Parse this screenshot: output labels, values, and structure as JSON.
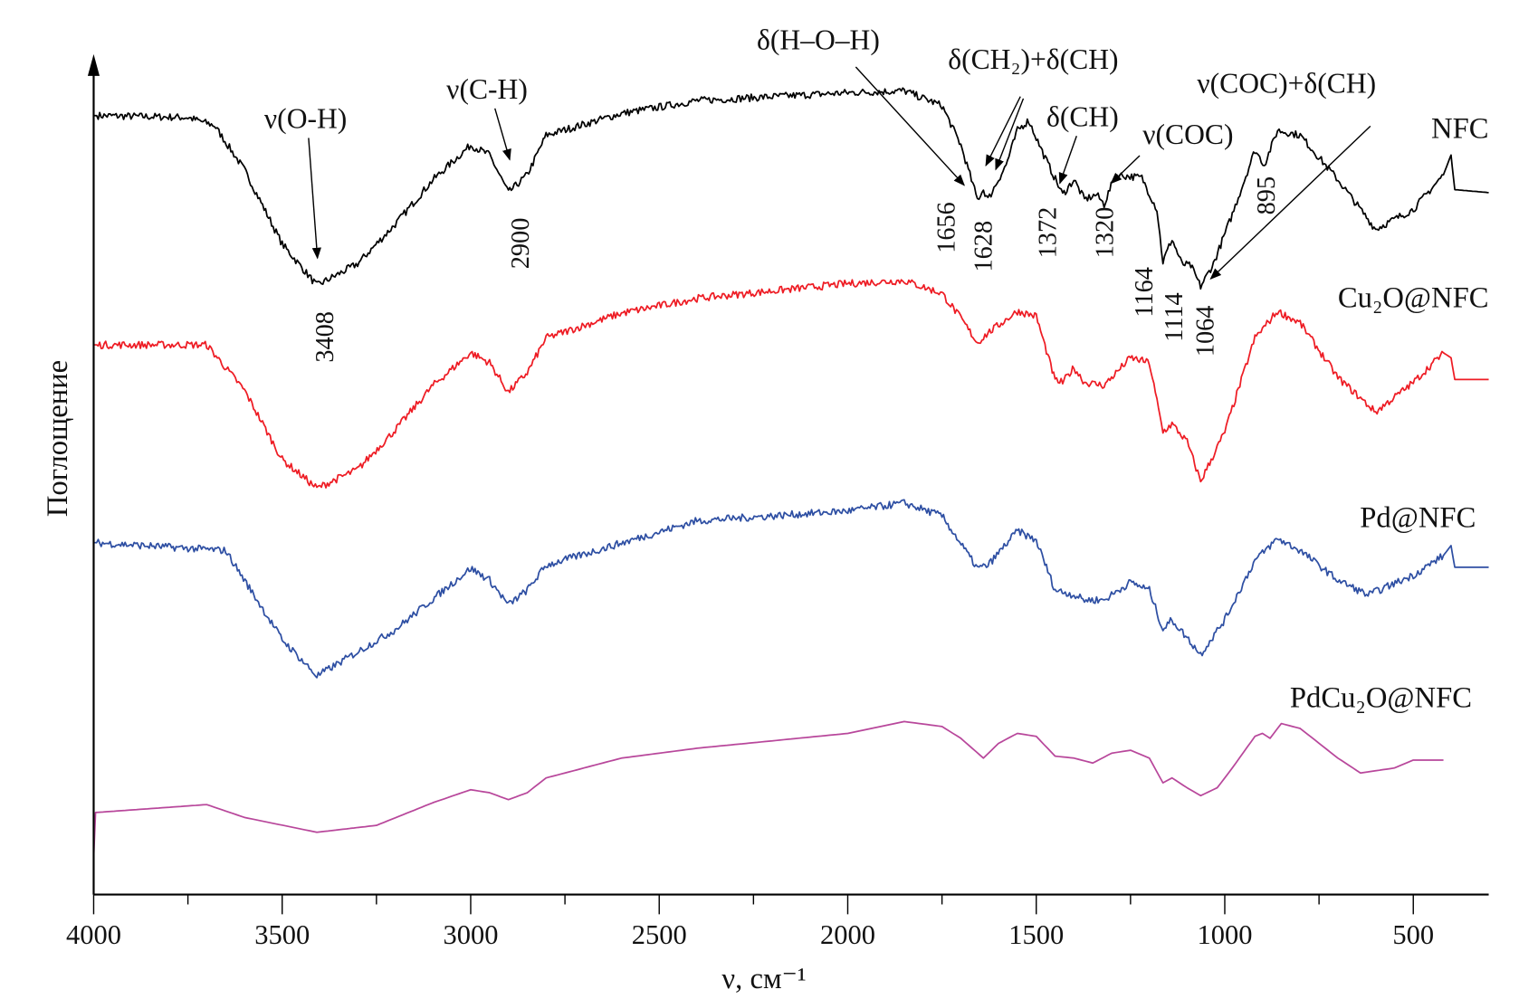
{
  "chart_data": {
    "type": "line",
    "title": "",
    "xlabel": "ν, см⁻¹",
    "ylabel": "Поглощение",
    "xlim": [
      4000,
      300
    ],
    "ylim": [
      0,
      85
    ],
    "x_reversed": true,
    "x_ticks": [
      4000,
      3500,
      3000,
      2500,
      2000,
      1500,
      1000,
      500
    ],
    "x_tick_labels": [
      "4000",
      "3500",
      "3000",
      "2500",
      "2000",
      "1500",
      "1000",
      "500"
    ],
    "y_ticks_shown": false,
    "grid": false,
    "legend": "inline labels at right end of each curve",
    "series": [
      {
        "name": "NFC",
        "color": "#000000",
        "points": [
          [
            4000,
            78.8
          ],
          [
            3750,
            78.6
          ],
          [
            3680,
            77.8
          ],
          [
            3600,
            73.3
          ],
          [
            3500,
            65.8
          ],
          [
            3408,
            61.6
          ],
          [
            3300,
            63.8
          ],
          [
            3200,
            67.8
          ],
          [
            3100,
            72.3
          ],
          [
            3000,
            75.8
          ],
          [
            2950,
            74.8
          ],
          [
            2900,
            71.0
          ],
          [
            2850,
            72.8
          ],
          [
            2800,
            76.8
          ],
          [
            2600,
            79.0
          ],
          [
            2400,
            80.3
          ],
          [
            2000,
            81.1
          ],
          [
            1850,
            81.3
          ],
          [
            1750,
            79.8
          ],
          [
            1700,
            75.8
          ],
          [
            1656,
            70.3
          ],
          [
            1640,
            71.3
          ],
          [
            1628,
            70.3
          ],
          [
            1580,
            73.8
          ],
          [
            1550,
            77.3
          ],
          [
            1520,
            78.3
          ],
          [
            1480,
            74.8
          ],
          [
            1430,
            70.8
          ],
          [
            1400,
            72.3
          ],
          [
            1372,
            70.3
          ],
          [
            1340,
            70.8
          ],
          [
            1320,
            69.8
          ],
          [
            1290,
            72.8
          ],
          [
            1220,
            72.5
          ],
          [
            1180,
            69.3
          ],
          [
            1164,
            64.0
          ],
          [
            1140,
            66.3
          ],
          [
            1114,
            63.8
          ],
          [
            1090,
            63.6
          ],
          [
            1064,
            61.5
          ],
          [
            1030,
            63.8
          ],
          [
            980,
            68.8
          ],
          [
            920,
            75.3
          ],
          [
            895,
            73.8
          ],
          [
            860,
            77.3
          ],
          [
            800,
            76.8
          ],
          [
            700,
            72.3
          ],
          [
            600,
            67.3
          ],
          [
            500,
            69.3
          ],
          [
            420,
            72.8
          ],
          [
            400,
            74.8
          ],
          [
            390,
            71.3
          ],
          [
            300,
            71.0
          ]
        ]
      },
      {
        "name": "Cu₂O@NFC",
        "color": "#ee1c24",
        "points": [
          [
            4000,
            55.6
          ],
          [
            3700,
            55.6
          ],
          [
            3600,
            51.0
          ],
          [
            3500,
            44.0
          ],
          [
            3408,
            41.1
          ],
          [
            3300,
            43.0
          ],
          [
            3200,
            47.0
          ],
          [
            3100,
            51.5
          ],
          [
            3000,
            54.8
          ],
          [
            2950,
            53.8
          ],
          [
            2900,
            50.8
          ],
          [
            2850,
            52.8
          ],
          [
            2800,
            56.3
          ],
          [
            2600,
            58.8
          ],
          [
            2400,
            60.3
          ],
          [
            2000,
            61.8
          ],
          [
            1850,
            62.1
          ],
          [
            1750,
            60.8
          ],
          [
            1700,
            58.3
          ],
          [
            1656,
            55.8
          ],
          [
            1628,
            56.8
          ],
          [
            1550,
            59.0
          ],
          [
            1500,
            58.5
          ],
          [
            1450,
            52.0
          ],
          [
            1430,
            51.8
          ],
          [
            1400,
            53.3
          ],
          [
            1372,
            51.8
          ],
          [
            1320,
            51.5
          ],
          [
            1250,
            54.3
          ],
          [
            1200,
            53.8
          ],
          [
            1164,
            46.8
          ],
          [
            1140,
            47.6
          ],
          [
            1100,
            45.8
          ],
          [
            1064,
            41.8
          ],
          [
            1000,
            46.8
          ],
          [
            920,
            56.3
          ],
          [
            860,
            59.0
          ],
          [
            800,
            57.8
          ],
          [
            700,
            52.3
          ],
          [
            600,
            48.8
          ],
          [
            500,
            51.8
          ],
          [
            420,
            54.8
          ],
          [
            400,
            54.3
          ],
          [
            390,
            52.1
          ],
          [
            300,
            52.1
          ]
        ]
      },
      {
        "name": "Pd@NFC",
        "color": "#2e4fa3",
        "points": [
          [
            4000,
            35.6
          ],
          [
            3650,
            34.8
          ],
          [
            3500,
            25.8
          ],
          [
            3408,
            22.1
          ],
          [
            3200,
            26.8
          ],
          [
            3000,
            33.0
          ],
          [
            2950,
            31.8
          ],
          [
            2900,
            29.3
          ],
          [
            2850,
            30.8
          ],
          [
            2800,
            33.3
          ],
          [
            2400,
            37.8
          ],
          [
            2000,
            38.8
          ],
          [
            1850,
            39.6
          ],
          [
            1750,
            38.3
          ],
          [
            1656,
            33.0
          ],
          [
            1628,
            33.3
          ],
          [
            1550,
            36.8
          ],
          [
            1500,
            35.8
          ],
          [
            1450,
            30.8
          ],
          [
            1400,
            30.3
          ],
          [
            1372,
            29.8
          ],
          [
            1320,
            29.8
          ],
          [
            1250,
            31.6
          ],
          [
            1200,
            30.8
          ],
          [
            1164,
            26.8
          ],
          [
            1140,
            27.8
          ],
          [
            1064,
            24.3
          ],
          [
            1000,
            27.8
          ],
          [
            920,
            33.8
          ],
          [
            860,
            36.0
          ],
          [
            800,
            34.8
          ],
          [
            700,
            31.8
          ],
          [
            620,
            30.3
          ],
          [
            500,
            32.3
          ],
          [
            420,
            34.3
          ],
          [
            400,
            35.3
          ],
          [
            390,
            33.1
          ],
          [
            300,
            33.1
          ]
        ]
      },
      {
        "name": "PdCu₂O@NFC",
        "color": "#b8479b",
        "points": [
          [
            4000,
            3.8
          ],
          [
            3995,
            8.3
          ],
          [
            3700,
            9.1
          ],
          [
            3600,
            7.8
          ],
          [
            3408,
            6.3
          ],
          [
            3250,
            7.0
          ],
          [
            3100,
            9.3
          ],
          [
            3000,
            10.6
          ],
          [
            2950,
            10.3
          ],
          [
            2900,
            9.6
          ],
          [
            2850,
            10.3
          ],
          [
            2800,
            11.8
          ],
          [
            2600,
            13.8
          ],
          [
            2400,
            14.8
          ],
          [
            2000,
            16.3
          ],
          [
            1850,
            17.5
          ],
          [
            1750,
            17.0
          ],
          [
            1700,
            15.8
          ],
          [
            1640,
            13.8
          ],
          [
            1600,
            15.3
          ],
          [
            1550,
            16.3
          ],
          [
            1500,
            16.0
          ],
          [
            1450,
            14.0
          ],
          [
            1400,
            13.8
          ],
          [
            1350,
            13.3
          ],
          [
            1300,
            14.3
          ],
          [
            1250,
            14.6
          ],
          [
            1200,
            13.8
          ],
          [
            1164,
            11.3
          ],
          [
            1140,
            11.8
          ],
          [
            1100,
            10.8
          ],
          [
            1064,
            10.0
          ],
          [
            1020,
            10.8
          ],
          [
            980,
            12.8
          ],
          [
            920,
            16.0
          ],
          [
            900,
            16.3
          ],
          [
            880,
            15.8
          ],
          [
            850,
            17.3
          ],
          [
            800,
            16.8
          ],
          [
            700,
            13.8
          ],
          [
            640,
            12.3
          ],
          [
            550,
            12.8
          ],
          [
            500,
            13.6
          ],
          [
            420,
            13.6
          ]
        ]
      }
    ],
    "band_labels": [
      "ν(O-H)",
      "ν(C-H)",
      "δ(H–O–H)",
      "δ(CH₂)+δ(CH)",
      "δ(CH)",
      "ν(COC)",
      "ν(COC)+δ(CH)"
    ],
    "peak_labels": [
      "3408",
      "2900",
      "1656",
      "1628",
      "1372",
      "1320",
      "1164",
      "1114",
      "1064",
      "895"
    ]
  }
}
